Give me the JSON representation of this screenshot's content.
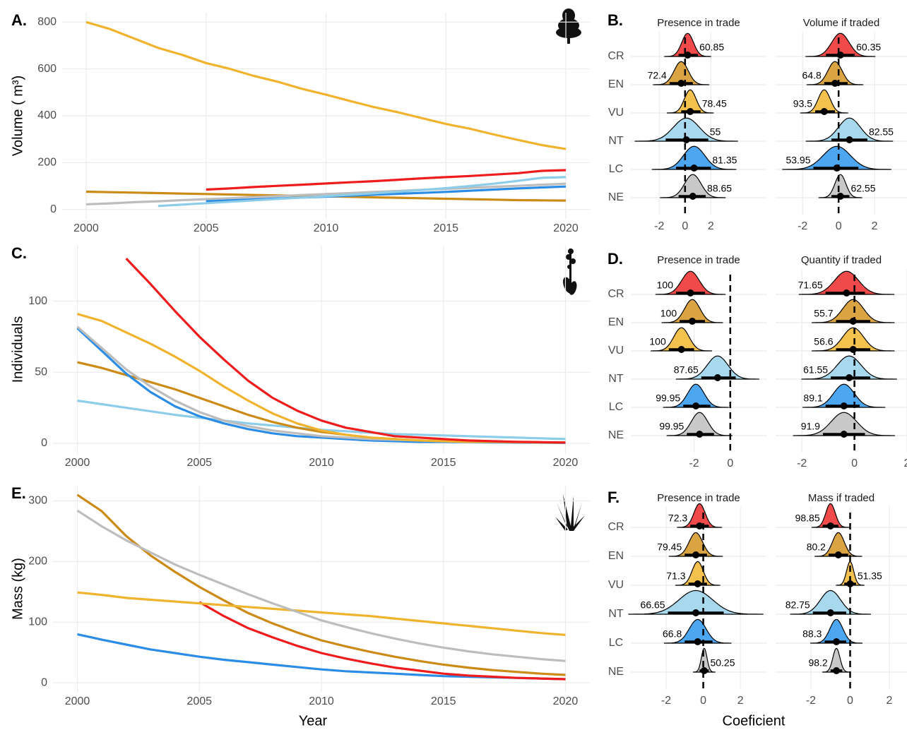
{
  "chart_data": [
    {
      "type": "line",
      "tag": "A.",
      "ylabel": "Volume ( m³)",
      "x": [
        2000,
        2001,
        2002,
        2003,
        2004,
        2005,
        2006,
        2007,
        2008,
        2009,
        2010,
        2011,
        2012,
        2013,
        2014,
        2015,
        2016,
        2017,
        2018,
        2019,
        2020
      ],
      "xlim": [
        1999,
        2021
      ],
      "xticks": [
        2000,
        2005,
        2010,
        2015,
        2020
      ],
      "ylim": [
        -40,
        840
      ],
      "yticks": [
        0,
        200,
        400,
        600,
        800
      ],
      "grid": true,
      "series": [
        {
          "color": "#cc8a17",
          "values": [
            76,
            74,
            72,
            70,
            68,
            66,
            64,
            62,
            60,
            58,
            56,
            54,
            52,
            50,
            48,
            46,
            44,
            42,
            40,
            39,
            38
          ]
        },
        {
          "color": "#bdbdbd",
          "values": [
            22,
            26,
            31,
            35,
            40,
            44,
            48,
            53,
            57,
            62,
            66,
            70,
            75,
            79,
            84,
            88,
            92,
            97,
            101,
            106,
            110
          ]
        },
        {
          "color": "#2b8ce6",
          "values": [
            null,
            null,
            null,
            null,
            null,
            35,
            39,
            43,
            47,
            51,
            55,
            59,
            63,
            67,
            71,
            75,
            80,
            85,
            90,
            94,
            98
          ]
        },
        {
          "color": "#8dcdea",
          "values": [
            null,
            null,
            null,
            15,
            21,
            27,
            33,
            39,
            45,
            51,
            57,
            63,
            69,
            76,
            83,
            91,
            100,
            110,
            122,
            135,
            138
          ]
        },
        {
          "color": "#ee1c1c",
          "values": [
            null,
            null,
            null,
            null,
            null,
            85,
            90,
            96,
            101,
            106,
            111,
            116,
            121,
            127,
            133,
            138,
            143,
            149,
            155,
            165,
            168
          ]
        },
        {
          "color": "#f0b32e",
          "values": [
            800,
            770,
            730,
            690,
            660,
            625,
            600,
            570,
            545,
            515,
            490,
            463,
            437,
            415,
            390,
            365,
            345,
            320,
            297,
            275,
            258
          ]
        }
      ]
    },
    {
      "type": "ridge",
      "tag": "B.",
      "categories": [
        "CR",
        "EN",
        "VU",
        "NT",
        "LC",
        "NE"
      ],
      "colors": [
        "#f04a4a",
        "#d9a441",
        "#f2c14e",
        "#a8d8ee",
        "#4da6f0",
        "#c8c8c8"
      ],
      "panels": [
        {
          "title": "Presence in trade",
          "xlim": [
            -4.2,
            6.3
          ],
          "xticks": [
            -2,
            0,
            2
          ],
          "estimates": [
            0.2,
            -0.3,
            0.4,
            0.1,
            0.7,
            0.6
          ],
          "lower": [
            -0.5,
            -1.2,
            -0.3,
            -1.5,
            -0.7,
            -0.5
          ],
          "upper": [
            1,
            0.6,
            1.2,
            1.8,
            2,
            1.6
          ],
          "values": [
            60.85,
            72.4,
            78.45,
            55,
            81.35,
            88.65
          ]
        },
        {
          "title": "Volume if traded",
          "xlim": [
            -3.5,
            3.8
          ],
          "xticks": [
            -2,
            0,
            2
          ],
          "estimates": [
            0.1,
            -0.2,
            -0.8,
            0.6,
            -0.1,
            0.1
          ],
          "lower": [
            -0.7,
            -0.8,
            -1.3,
            -0.4,
            -1.4,
            -0.4
          ],
          "upper": [
            0.9,
            0.5,
            -0.2,
            1.6,
            1.1,
            0.6
          ],
          "values": [
            60.35,
            64.8,
            93.5,
            82.55,
            53.95,
            62.55
          ]
        }
      ]
    },
    {
      "type": "line",
      "tag": "C.",
      "ylabel": "Individuals",
      "x": [
        2000,
        2001,
        2002,
        2003,
        2004,
        2005,
        2006,
        2007,
        2008,
        2009,
        2010,
        2011,
        2012,
        2013,
        2014,
        2015,
        2016,
        2017,
        2018,
        2019,
        2020
      ],
      "xlim": [
        1999,
        2021
      ],
      "xticks": [
        2000,
        2005,
        2010,
        2015,
        2020
      ],
      "ylim": [
        -7,
        139
      ],
      "yticks": [
        0,
        50,
        100
      ],
      "grid": true,
      "series": [
        {
          "color": "#8dcdea",
          "values": [
            30,
            27.5,
            25,
            22.5,
            20,
            18,
            16,
            14,
            12.5,
            11,
            9.5,
            8.5,
            7.5,
            6.5,
            6,
            5.5,
            5,
            4.5,
            4,
            3.5,
            3
          ]
        },
        {
          "color": "#cc8a17",
          "values": [
            57,
            53,
            48,
            43,
            38,
            32,
            26,
            20,
            15,
            11,
            8,
            6,
            4,
            3,
            2,
            1.5,
            1,
            1,
            0.8,
            0.6,
            0.5
          ]
        },
        {
          "color": "#2b8ce6",
          "values": [
            81,
            65,
            49,
            36,
            26,
            19,
            14,
            10,
            7,
            5,
            4,
            3,
            2,
            1.5,
            1,
            1,
            0.8,
            0.6,
            0.5,
            0.4,
            0.3
          ]
        },
        {
          "color": "#bdbdbd",
          "values": [
            82,
            67,
            52,
            40,
            30,
            22,
            16,
            12,
            9,
            7,
            5,
            4,
            3,
            2.5,
            2,
            1.5,
            1,
            1,
            0.8,
            0.6,
            0.5
          ]
        },
        {
          "color": "#f0b32e",
          "values": [
            91,
            86,
            78,
            70,
            61,
            51,
            40,
            30,
            21,
            14,
            9,
            6,
            4,
            3,
            2,
            1.5,
            1,
            1,
            0.8,
            0.6,
            0.5
          ]
        },
        {
          "color": "#ee1c1c",
          "values": [
            null,
            null,
            130,
            112,
            93,
            75,
            59,
            44,
            32,
            23,
            16,
            11,
            8,
            5,
            4,
            3,
            2,
            1.5,
            1,
            0.8,
            0.5
          ]
        }
      ]
    },
    {
      "type": "ridge",
      "tag": "D.",
      "categories": [
        "CR",
        "EN",
        "VU",
        "NT",
        "LC",
        "NE"
      ],
      "colors": [
        "#f04a4a",
        "#d9a441",
        "#f2c14e",
        "#a8d8ee",
        "#4da6f0",
        "#c8c8c8"
      ],
      "panels": [
        {
          "title": "Presence in trade",
          "xlim": [
            -5.5,
            2
          ],
          "xticks": [
            -2,
            0
          ],
          "estimates": [
            -2.2,
            -2.1,
            -2.7,
            -0.7,
            -1.9,
            -1.7
          ],
          "lower": [
            -3,
            -2.8,
            -3.4,
            -1.6,
            -2.6,
            -2.4
          ],
          "upper": [
            -1.4,
            -1.4,
            -2,
            0.3,
            -1.1,
            -0.9
          ],
          "values": [
            100,
            100,
            100,
            87.65,
            99.95,
            99.95
          ]
        },
        {
          "title": "Quantity if traded",
          "xlim": [
            -3,
            2
          ],
          "xticks": [
            -2,
            0,
            2
          ],
          "estimates": [
            -0.3,
            -0.05,
            -0.05,
            -0.2,
            -0.4,
            -0.4
          ],
          "lower": [
            -1.1,
            -0.7,
            -0.7,
            -0.9,
            -1.1,
            -1.2
          ],
          "upper": [
            0.4,
            0.6,
            0.6,
            0.6,
            0.2,
            0.4
          ],
          "values": [
            71.65,
            55.7,
            56.6,
            61.55,
            89.1,
            91.9
          ]
        }
      ]
    },
    {
      "type": "line",
      "tag": "E.",
      "ylabel": "Mass (kg)",
      "x": [
        2000,
        2001,
        2002,
        2003,
        2004,
        2005,
        2006,
        2007,
        2008,
        2009,
        2010,
        2011,
        2012,
        2013,
        2014,
        2015,
        2016,
        2017,
        2018,
        2019,
        2020
      ],
      "xlim": [
        1999,
        2021
      ],
      "xticks": [
        2000,
        2005,
        2010,
        2015,
        2020
      ],
      "ylim": [
        -15,
        325
      ],
      "yticks": [
        0,
        100,
        200,
        300
      ],
      "grid": true,
      "series": [
        {
          "color": "#2b8ce6",
          "values": [
            80,
            71,
            63,
            55,
            49,
            43,
            38,
            34,
            30,
            26,
            22,
            19,
            17,
            15,
            13,
            11,
            10,
            9,
            8,
            7,
            6
          ]
        },
        {
          "color": "#ee1c1c",
          "values": [
            null,
            null,
            null,
            null,
            null,
            133,
            110,
            90,
            75,
            61,
            49,
            40,
            32,
            25,
            20,
            15,
            12,
            10,
            8,
            7,
            6
          ]
        },
        {
          "color": "#cc8a17",
          "values": [
            310,
            283,
            242,
            210,
            183,
            158,
            136,
            115,
            98,
            83,
            70,
            60,
            51,
            43,
            36,
            30,
            25,
            21,
            18,
            15,
            13
          ]
        },
        {
          "color": "#f0b32e",
          "values": [
            149,
            145,
            140,
            137,
            134,
            131,
            128,
            125,
            122,
            119,
            116,
            113,
            110,
            106,
            102,
            98,
            94,
            90,
            86,
            82,
            79
          ]
        },
        {
          "color": "#bdbdbd",
          "values": [
            284,
            258,
            235,
            215,
            195,
            178,
            162,
            146,
            131,
            117,
            103,
            92,
            82,
            73,
            65,
            58,
            52,
            47,
            43,
            39,
            36
          ]
        }
      ]
    },
    {
      "type": "ridge",
      "tag": "F.",
      "categories": [
        "CR",
        "EN",
        "VU",
        "NT",
        "LC",
        "NE"
      ],
      "colors": [
        "#f04a4a",
        "#d9a441",
        "#f2c14e",
        "#a8d8ee",
        "#4da6f0",
        "#c8c8c8"
      ],
      "panels": [
        {
          "title": "Presence in trade",
          "xlim": [
            -3.9,
            3.4
          ],
          "xticks": [
            -2,
            0,
            2
          ],
          "estimates": [
            -0.2,
            -0.4,
            -0.3,
            -0.4,
            -0.3,
            0.05
          ],
          "lower": [
            -0.7,
            -1,
            -0.8,
            -1.9,
            -1,
            -0.2
          ],
          "upper": [
            0.3,
            0.2,
            0.2,
            1.1,
            0.5,
            0.3
          ],
          "values": [
            72.3,
            79.45,
            71.3,
            66.65,
            66.8,
            50.25
          ]
        },
        {
          "title": "Mass if traded",
          "xlim": [
            -3.8,
            2.9
          ],
          "xticks": [
            -2,
            0,
            2
          ],
          "estimates": [
            -1,
            -0.6,
            0,
            -1,
            -0.7,
            -0.7
          ],
          "lower": [
            -1.4,
            -1.1,
            -0.3,
            -1.9,
            -1.3,
            -1
          ],
          "upper": [
            -0.6,
            -0.1,
            0.3,
            -0.2,
            -0.2,
            -0.4
          ],
          "values": [
            98.85,
            80.2,
            51.35,
            82.75,
            88.3,
            98.2
          ]
        }
      ]
    }
  ],
  "x_title": "Year",
  "coef_title": "Coeficient"
}
